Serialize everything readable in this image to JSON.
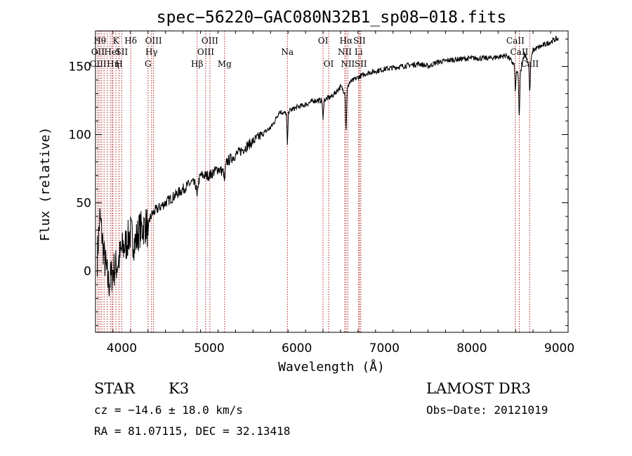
{
  "chart_data": {
    "type": "line",
    "title": "spec−56220−GAC080N32B1_sp08−018.fits",
    "xlabel": "Wavelength (Å)",
    "ylabel": "Flux (relative)",
    "xlim": [
      3700,
      9100
    ],
    "ylim": [
      -45,
      176
    ],
    "x_ticks": [
      4000,
      5000,
      6000,
      7000,
      8000,
      9000
    ],
    "y_ticks": [
      0,
      50,
      100,
      150
    ],
    "x_minor_step": 200,
    "y_minor_step": 10,
    "spectrum_anchors": {
      "x": [
        3700,
        3750,
        3800,
        3850,
        3900,
        3950,
        4000,
        4050,
        4100,
        4150,
        4200,
        4250,
        4300,
        4350,
        4400,
        4500,
        4600,
        4700,
        4800,
        4861,
        4900,
        5000,
        5100,
        5175,
        5200,
        5300,
        5400,
        5500,
        5600,
        5700,
        5750,
        5800,
        5893,
        5900,
        6000,
        6100,
        6200,
        6300,
        6400,
        6500,
        6563,
        6600,
        6700,
        6800,
        7000,
        7200,
        7400,
        7500,
        7600,
        7800,
        8000,
        8200,
        8400,
        8498,
        8542,
        8600,
        8662,
        8700,
        8800,
        8900,
        8960,
        9000
      ],
      "y": [
        -10,
        40,
        10,
        -10,
        0,
        5,
        15,
        20,
        28,
        20,
        30,
        32,
        35,
        42,
        45,
        50,
        55,
        60,
        65,
        62,
        70,
        70,
        75,
        72,
        80,
        85,
        90,
        95,
        100,
        105,
        110,
        117,
        115,
        117,
        120,
        122,
        125,
        125,
        128,
        135,
        130,
        138,
        142,
        145,
        148,
        150,
        152,
        150,
        153,
        155,
        156,
        156,
        158,
        150,
        140,
        160,
        150,
        162,
        165,
        168,
        170,
        170
      ]
    },
    "noise_seed": 7,
    "absorption_dips": [
      {
        "wavelength": 4300,
        "depth": 12
      },
      {
        "wavelength": 4861,
        "depth": 10
      },
      {
        "wavelength": 5175,
        "depth": 8
      },
      {
        "wavelength": 5893,
        "depth": 25
      },
      {
        "wavelength": 6300,
        "depth": 15
      },
      {
        "wavelength": 6563,
        "depth": 30
      },
      {
        "wavelength": 8498,
        "depth": 20
      },
      {
        "wavelength": 8542,
        "depth": 30
      },
      {
        "wavelength": 8662,
        "depth": 22
      }
    ],
    "lines": [
      {
        "wavelength": 3750,
        "label": "Hθ",
        "row": 0
      },
      {
        "wavelength": 3727,
        "label": "OII",
        "row": 1
      },
      {
        "wavelength": 3730,
        "label": "OIII",
        "row": 2
      },
      {
        "wavelength": 3771,
        "label": "",
        "row": 0
      },
      {
        "wavelength": 3798,
        "label": "",
        "row": 0
      },
      {
        "wavelength": 3835,
        "label": "",
        "row": 0
      },
      {
        "wavelength": 3869,
        "label": "",
        "row": 0
      },
      {
        "wavelength": 3889,
        "label": "HeI",
        "row": 1
      },
      {
        "wavelength": 3934,
        "label": "K",
        "row": 0
      },
      {
        "wavelength": 3900,
        "label": "Hη",
        "row": 2
      },
      {
        "wavelength": 3969,
        "label": "H",
        "row": 2
      },
      {
        "wavelength": 4000,
        "label": "SII",
        "row": 1
      },
      {
        "wavelength": 4102,
        "label": "Hδ",
        "row": 0
      },
      {
        "wavelength": 4300,
        "label": "G",
        "row": 2
      },
      {
        "wavelength": 4340,
        "label": "Hγ",
        "row": 1
      },
      {
        "wavelength": 4363,
        "label": "OIII",
        "row": 0
      },
      {
        "wavelength": 4861,
        "label": "Hβ",
        "row": 2
      },
      {
        "wavelength": 4959,
        "label": "OIII",
        "row": 1
      },
      {
        "wavelength": 5007,
        "label": "OIII",
        "row": 0
      },
      {
        "wavelength": 5175,
        "label": "Mg",
        "row": 2
      },
      {
        "wavelength": 5893,
        "label": "Na",
        "row": 1
      },
      {
        "wavelength": 6300,
        "label": "OI",
        "row": 0
      },
      {
        "wavelength": 6364,
        "label": "OI",
        "row": 2
      },
      {
        "wavelength": 6548,
        "label": "NII",
        "row": 1
      },
      {
        "wavelength": 6563,
        "label": "Hα",
        "row": 0
      },
      {
        "wavelength": 6583,
        "label": "NII",
        "row": 2
      },
      {
        "wavelength": 6707,
        "label": "Li",
        "row": 1
      },
      {
        "wavelength": 6716,
        "label": "SII",
        "row": 0
      },
      {
        "wavelength": 6731,
        "label": "SII",
        "row": 2
      },
      {
        "wavelength": 8498,
        "label": "CaII",
        "row": 0
      },
      {
        "wavelength": 8542,
        "label": "CaII",
        "row": 1
      },
      {
        "wavelength": 8662,
        "label": "CaII",
        "row": 2
      }
    ]
  },
  "info": {
    "class": "STAR",
    "subclass": "K3",
    "survey": "LAMOST DR3",
    "redshift": "cz = −14.6 ± 18.0 km/s",
    "obs_date": "Obs−Date: 20121019",
    "coords": "RA =  81.07115, DEC =  32.13418"
  },
  "colors": {
    "spectrum": "#000000",
    "line_markers": "#b22222",
    "axes": "#000000",
    "background": "#ffffff"
  }
}
